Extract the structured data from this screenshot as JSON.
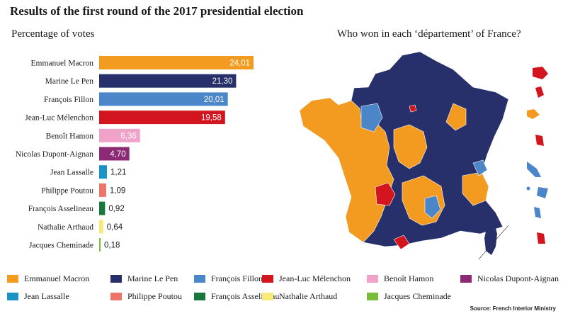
{
  "title": "Results of the first round of the 2017 presidential election",
  "bar_subtitle": "Percentage of votes",
  "map_subtitle": "Who won in each ‘département’ of France?",
  "source": "Source: French Interior Ministry",
  "chart_data": [
    {
      "type": "bar",
      "orientation": "horizontal",
      "title": "Percentage of votes",
      "categories": [
        "Emmanuel Macron",
        "Marine Le Pen",
        "François Fillon",
        "Jean-Luc Mélenchon",
        "Benoît Hamon",
        "Nicolas Dupont-Aignan",
        "Jean Lassalle",
        "Philippe Poutou",
        "François Asselineau",
        "Nathalie Arthaud",
        "Jacques Cheminade"
      ],
      "values": [
        24.01,
        21.3,
        20.01,
        19.58,
        6.36,
        4.7,
        1.21,
        1.09,
        0.92,
        0.64,
        0.18
      ],
      "value_labels": [
        "24,01",
        "21,30",
        "20,01",
        "19,58",
        "6,36",
        "4,70",
        "1,21",
        "1,09",
        "0,92",
        "0,64",
        "0,18"
      ],
      "colors": [
        "#f39a21",
        "#27306b",
        "#4a86c8",
        "#d2151f",
        "#f0a2c8",
        "#8c2a76",
        "#1a93c4",
        "#ec7468",
        "#17773c",
        "#f7ea7a",
        "#79bc3c"
      ],
      "xlim": [
        0,
        24.01
      ],
      "grid": false
    }
  ],
  "legend": {
    "placement": "bottom",
    "items": [
      {
        "label": "Emmanuel Macron",
        "color": "#f39a21"
      },
      {
        "label": "Marine Le Pen",
        "color": "#27306b"
      },
      {
        "label": "François Fillon",
        "color": "#4a86c8"
      },
      {
        "label": "Jean-Luc Mélenchon",
        "color": "#d2151f"
      },
      {
        "label": "Benoît Hamon",
        "color": "#f0a2c8"
      },
      {
        "label": "Nicolas Dupont-Aignan",
        "color": "#8c2a76"
      },
      {
        "label": "Jean Lassalle",
        "color": "#1a93c4"
      },
      {
        "label": "Philippe Poutou",
        "color": "#ec7468"
      },
      {
        "label": "François Asselineau",
        "color": "#17773c"
      },
      {
        "label": "Nathalie Arthaud",
        "color": "#f7ea7a"
      },
      {
        "label": "Jacques Cheminade",
        "color": "#79bc3c"
      }
    ]
  },
  "map": {
    "colors": {
      "macron": "#f39a21",
      "le_pen": "#27306b",
      "fillon": "#4a86c8",
      "melenchon": "#d2151f"
    }
  }
}
